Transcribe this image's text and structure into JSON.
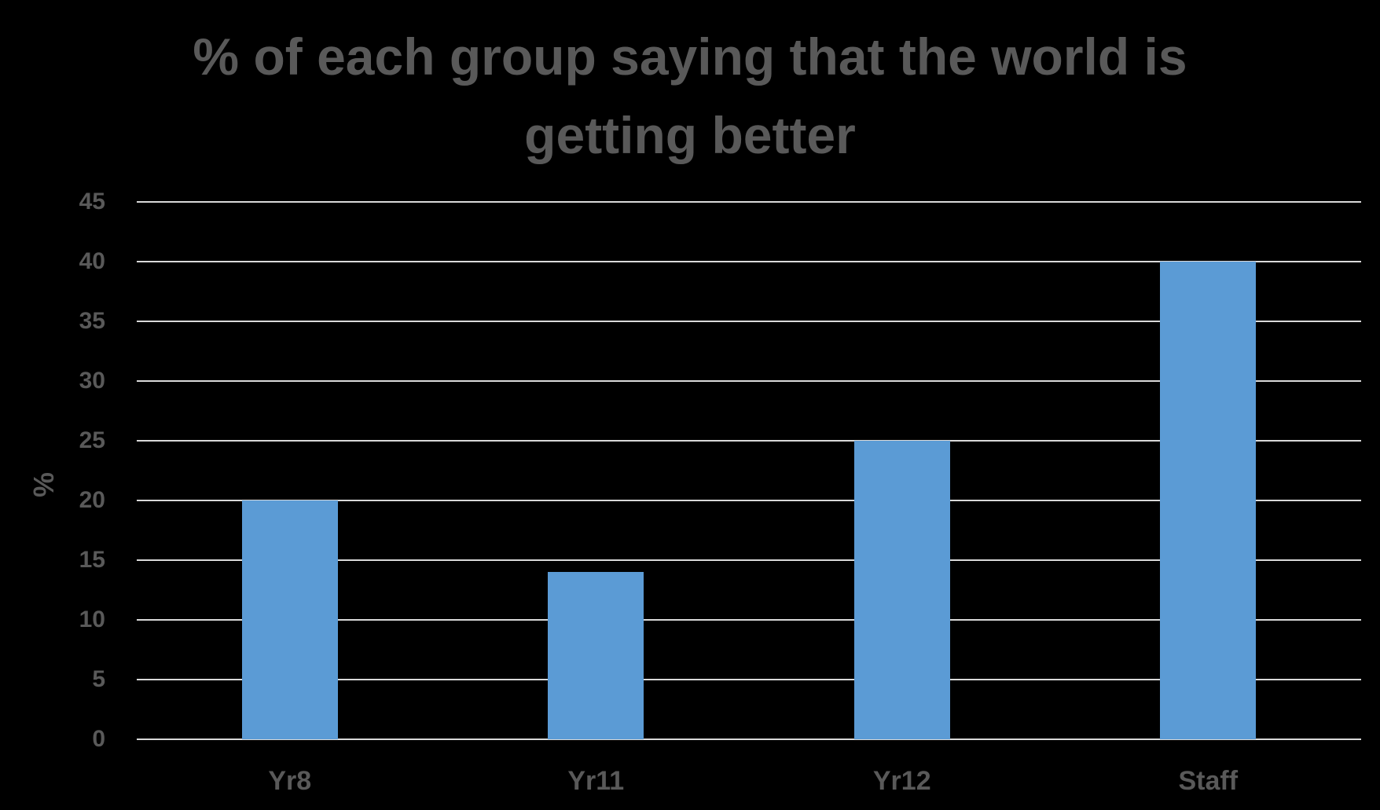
{
  "chart_data": {
    "type": "bar",
    "title": "% of each group saying that the world is getting better",
    "title_lines": [
      "% of each group saying that the world is",
      "getting better"
    ],
    "xlabel": "",
    "ylabel": "%",
    "categories": [
      "Yr8",
      "Yr11",
      "Yr12",
      "Staff"
    ],
    "values": [
      20,
      14,
      25,
      40
    ],
    "ylim": [
      0,
      45
    ],
    "yticks": [
      0,
      5,
      10,
      15,
      20,
      25,
      30,
      35,
      40,
      45
    ],
    "grid": true,
    "legend": null,
    "colors": {
      "bar": "#5b9bd5",
      "background": "#000000",
      "text": "#595959",
      "grid": "#d9d9d9"
    }
  }
}
